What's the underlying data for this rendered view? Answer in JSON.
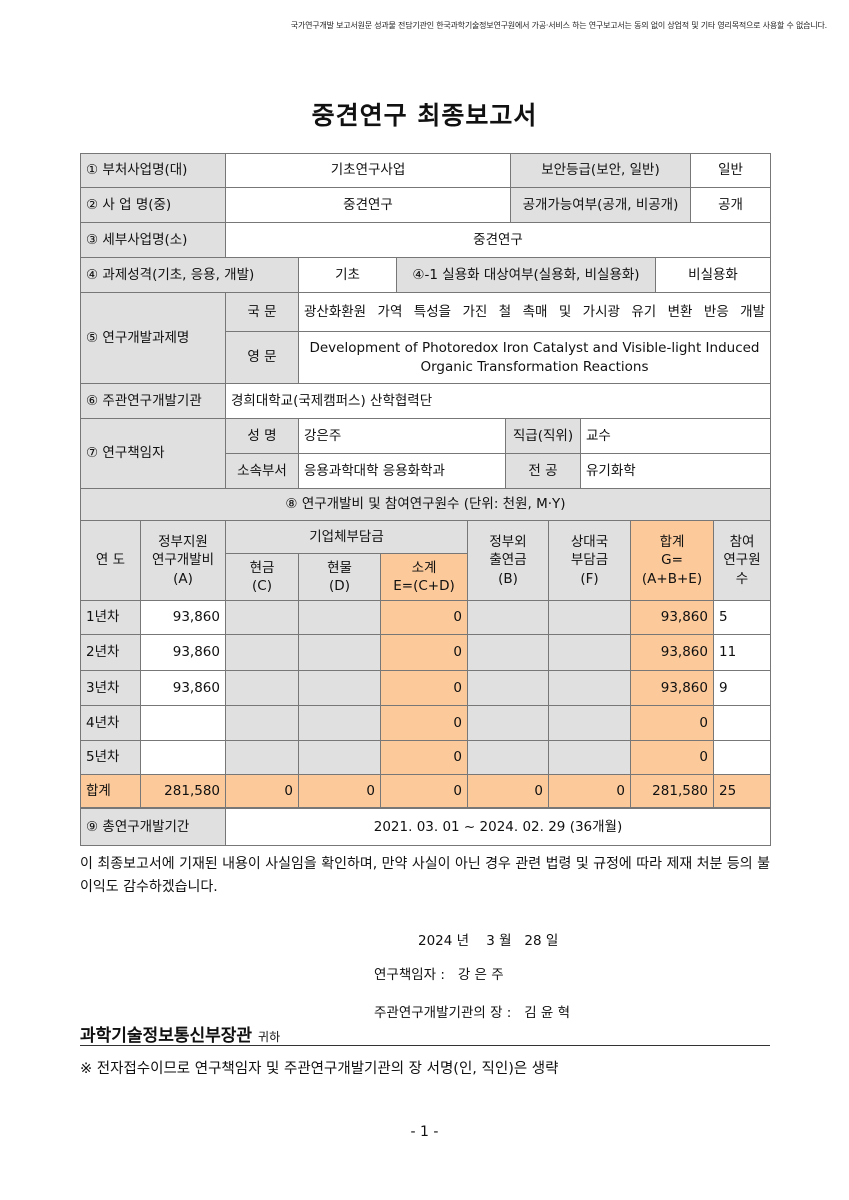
{
  "notice": "국가연구개발 보고서원문 성과물 전담기관인 한국과학기술정보연구원에서 가공·서비스 하는 연구보고서는 동의 없이 상업적 및 기타 영리목적으로 사용할 수 없습니다.",
  "title": "중견연구 최종보고서",
  "colors": {
    "header_bg": "#e0e0e0",
    "highlight_bg": "#fbc99a"
  },
  "form": {
    "r1": {
      "label": "① 부처사업명(대)",
      "value": "기초연구사업",
      "label2": "보안등급(보안, 일반)",
      "value2": "일반"
    },
    "r2": {
      "label": "② 사 업 명(중)",
      "value": "중견연구",
      "label2": "공개가능여부(공개, 비공개)",
      "value2": "공개"
    },
    "r3": {
      "label": "③ 세부사업명(소)",
      "value": "중견연구"
    },
    "r4": {
      "label": "④ 과제성격(기초, 응용, 개발)",
      "value": "기초",
      "label2": "④-1 실용화 대상여부(실용화, 비실용화)",
      "value2": "비실용화"
    },
    "r5": {
      "label": "⑤ 연구개발과제명",
      "kor_label": "국 문",
      "kor": "광산화환원 가역 특성을 가진 철 촉매 및 가시광 유기 변환 반응 개발",
      "eng_label": "영 문",
      "eng": "Development of Photoredox Iron Catalyst and Visible-light Induced\nOrganic Transformation Reactions"
    },
    "r6": {
      "label": "⑥ 주관연구개발기관",
      "value": "경희대학교(국제캠퍼스) 산학협력단"
    },
    "r7": {
      "label": "⑦ 연구책임자",
      "name_label": "성 명",
      "name": "강은주",
      "rank_label": "직급(직위)",
      "rank": "교수",
      "dept_label": "소속부서",
      "dept": "응용과학대학 응용화학과",
      "major_label": "전 공",
      "major": "유기화학"
    },
    "r8": {
      "label": "⑧ 연구개발비 및 참여연구원수 (단위: 천원, M·Y)"
    },
    "budget": {
      "headers": {
        "year": "연 도",
        "gov": "정부지원\n연구개발비\n(A)",
        "company": "기업체부담금",
        "cash": "현금\n(C)",
        "inkind": "현물\n(D)",
        "subtotal": "소계\nE=(C+D)",
        "nongov": "정부외\n출연금\n(B)",
        "partner": "상대국\n부담금\n(F)",
        "total": "합계\nG=(A+B+E)",
        "staff": "참여\n연구원수"
      },
      "rows": [
        [
          "1년차",
          "93,860",
          "",
          "",
          "0",
          "",
          "",
          "93,860",
          "5"
        ],
        [
          "2년차",
          "93,860",
          "",
          "",
          "0",
          "",
          "",
          "93,860",
          "11"
        ],
        [
          "3년차",
          "93,860",
          "",
          "",
          "0",
          "",
          "",
          "93,860",
          "9"
        ],
        [
          "4년차",
          "",
          "",
          "",
          "0",
          "",
          "",
          "0",
          ""
        ],
        [
          "5년차",
          "",
          "",
          "",
          "0",
          "",
          "",
          "0",
          ""
        ],
        [
          "합계",
          "281,580",
          "0",
          "0",
          "0",
          "0",
          "0",
          "281,580",
          "25"
        ]
      ]
    },
    "r9": {
      "label": "⑨ 총연구개발기간",
      "value": "2021. 03. 01 ~ 2024. 02. 29 (36개월)"
    }
  },
  "statement": "이 최종보고서에 기재된 내용이 사실임을 확인하며, 만약 사실이 아닌 경우 관련 법령 및 규정에 따라 제재 처분 등의 불이익도 감수하겠습니다.",
  "date": "2024 년    3 월   28 일",
  "signer1": "연구책임자 :   강 은 주",
  "signer2": "주관연구개발기관의 장 :   김 윤 혁",
  "minister": "과학기술정보통신부장관",
  "minister_suffix": "귀하",
  "footnote": "※ 전자접수이므로 연구책임자 및 주관연구개발기관의 장 서명(인, 직인)은 생략",
  "page_number": "- 1 -"
}
